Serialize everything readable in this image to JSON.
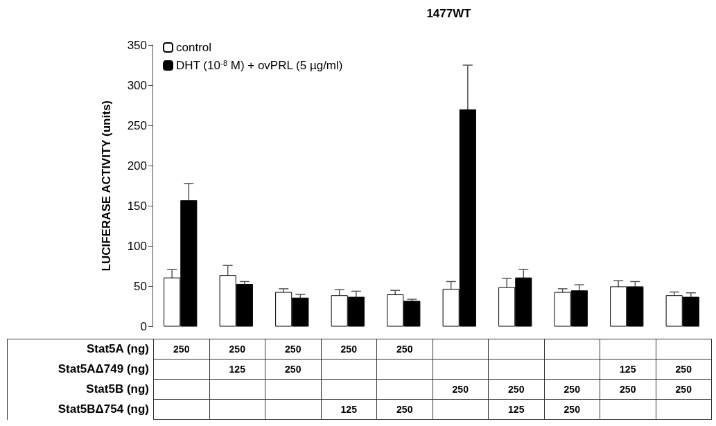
{
  "chart_data": {
    "type": "bar",
    "title": "1477WT",
    "ylabel": "LUCIFERASE ACTIVITY (units)",
    "categories": [
      null,
      null,
      null,
      null,
      null,
      null,
      null,
      null,
      null,
      null
    ],
    "series": [
      {
        "name": "control",
        "color": "#ffffff",
        "values": [
          61,
          64,
          43,
          39,
          40,
          47,
          49,
          43,
          50,
          39
        ],
        "errors": [
          10,
          12,
          4,
          7,
          5,
          9,
          11,
          4,
          7,
          4
        ]
      },
      {
        "name": "DHT (10$^{-8}$ M) + ovPRL (5 µg/ml)",
        "color": "#000000",
        "values": [
          157,
          53,
          36,
          37,
          32,
          270,
          61,
          45,
          50,
          37
        ],
        "errors": [
          21,
          3,
          4,
          7,
          2,
          55,
          10,
          7,
          6,
          5
        ]
      }
    ],
    "ylim": [
      0,
      350
    ],
    "yticks": [
      0,
      50,
      100,
      150,
      200,
      250,
      300,
      350
    ],
    "grid": false,
    "legend": "top left",
    "annotations": [
      "Stat5A (ng)",
      "250",
      "250",
      "250",
      "250",
      "250",
      null,
      null,
      null,
      null,
      null,
      "Stat5AΔ749 (ng)",
      null,
      "125",
      "250",
      null,
      null,
      null,
      null,
      null,
      "125",
      "250",
      "Stat5B (ng)",
      null,
      null,
      null,
      null,
      null,
      "250",
      "250",
      "250",
      "250",
      "250",
      "Stat5BΔ754 (ng)",
      null,
      null,
      null,
      "125",
      "250",
      null,
      "125",
      "250",
      null,
      null
    ]
  }
}
